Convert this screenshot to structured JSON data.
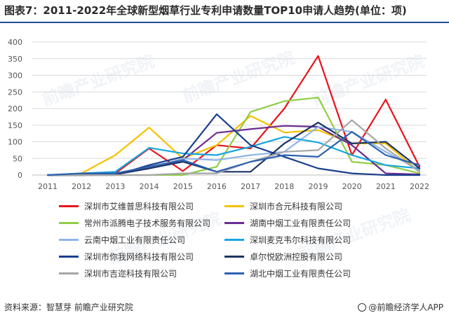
{
  "title": "图表7：2011-2022年全球新型烟草行业专利申请数量TOP10申请人趋势(单位：项)",
  "source": "资料来源：智慧芽 前瞻产业研究院",
  "brand": "@前瞻经济学人APP",
  "watermark": "前瞻产业研究院",
  "chart_data": {
    "type": "line",
    "title": "",
    "xlabel": "",
    "ylabel": "",
    "ylim": [
      0,
      400
    ],
    "yticks": [
      "0",
      "50",
      "100",
      "150",
      "200",
      "250",
      "300",
      "350",
      "400"
    ],
    "categories": [
      "2011",
      "2012",
      "2013",
      "2014",
      "2015",
      "2016",
      "2017",
      "2018",
      "2019",
      "2020",
      "2021",
      "2022"
    ],
    "grid": true,
    "legend_position": "bottom",
    "series": [
      {
        "name": "深圳市艾维普思科技有限公司",
        "color": "#e8141b",
        "values": [
          0,
          2,
          5,
          80,
          12,
          90,
          80,
          200,
          358,
          60,
          227,
          25
        ]
      },
      {
        "name": "深圳市合元科技有限公司",
        "color": "#f5c100",
        "values": [
          0,
          5,
          60,
          143,
          50,
          90,
          178,
          128,
          135,
          95,
          95,
          10
        ]
      },
      {
        "name": "常州市派腾电子技术服务有限公司",
        "color": "#8fce45",
        "values": [
          0,
          0,
          0,
          0,
          0,
          25,
          190,
          222,
          233,
          40,
          30,
          5
        ]
      },
      {
        "name": "湖南中烟工业有限责任公司",
        "color": "#6a2d91",
        "values": [
          0,
          0,
          2,
          20,
          45,
          127,
          138,
          148,
          145,
          90,
          5,
          2
        ]
      },
      {
        "name": "云南中烟工业有限责任公司",
        "color": "#8fb5e8",
        "values": [
          0,
          0,
          2,
          20,
          50,
          45,
          60,
          70,
          145,
          130,
          70,
          15
        ]
      },
      {
        "name": "深圳麦克韦尔科技有限公司",
        "color": "#18a6e0",
        "values": [
          0,
          5,
          10,
          82,
          65,
          60,
          85,
          115,
          98,
          60,
          30,
          20
        ]
      },
      {
        "name": "深圳市你我网络科技有限公司",
        "color": "#1a3f8e",
        "values": [
          0,
          0,
          0,
          30,
          55,
          183,
          90,
          55,
          20,
          5,
          0,
          0
        ]
      },
      {
        "name": "卓尔悦欧洲控股有限公司",
        "color": "#1c3466",
        "values": [
          0,
          0,
          2,
          20,
          40,
          10,
          10,
          95,
          158,
          95,
          100,
          20
        ]
      },
      {
        "name": "深圳市吉迩科技有限公司",
        "color": "#a6a6a6",
        "values": [
          0,
          0,
          0,
          0,
          5,
          5,
          40,
          70,
          75,
          165,
          80,
          10
        ]
      },
      {
        "name": "湖北中烟工业有限责任公司",
        "color": "#2c61b0",
        "values": [
          0,
          5,
          5,
          25,
          45,
          10,
          40,
          60,
          55,
          130,
          60,
          30
        ]
      }
    ]
  }
}
